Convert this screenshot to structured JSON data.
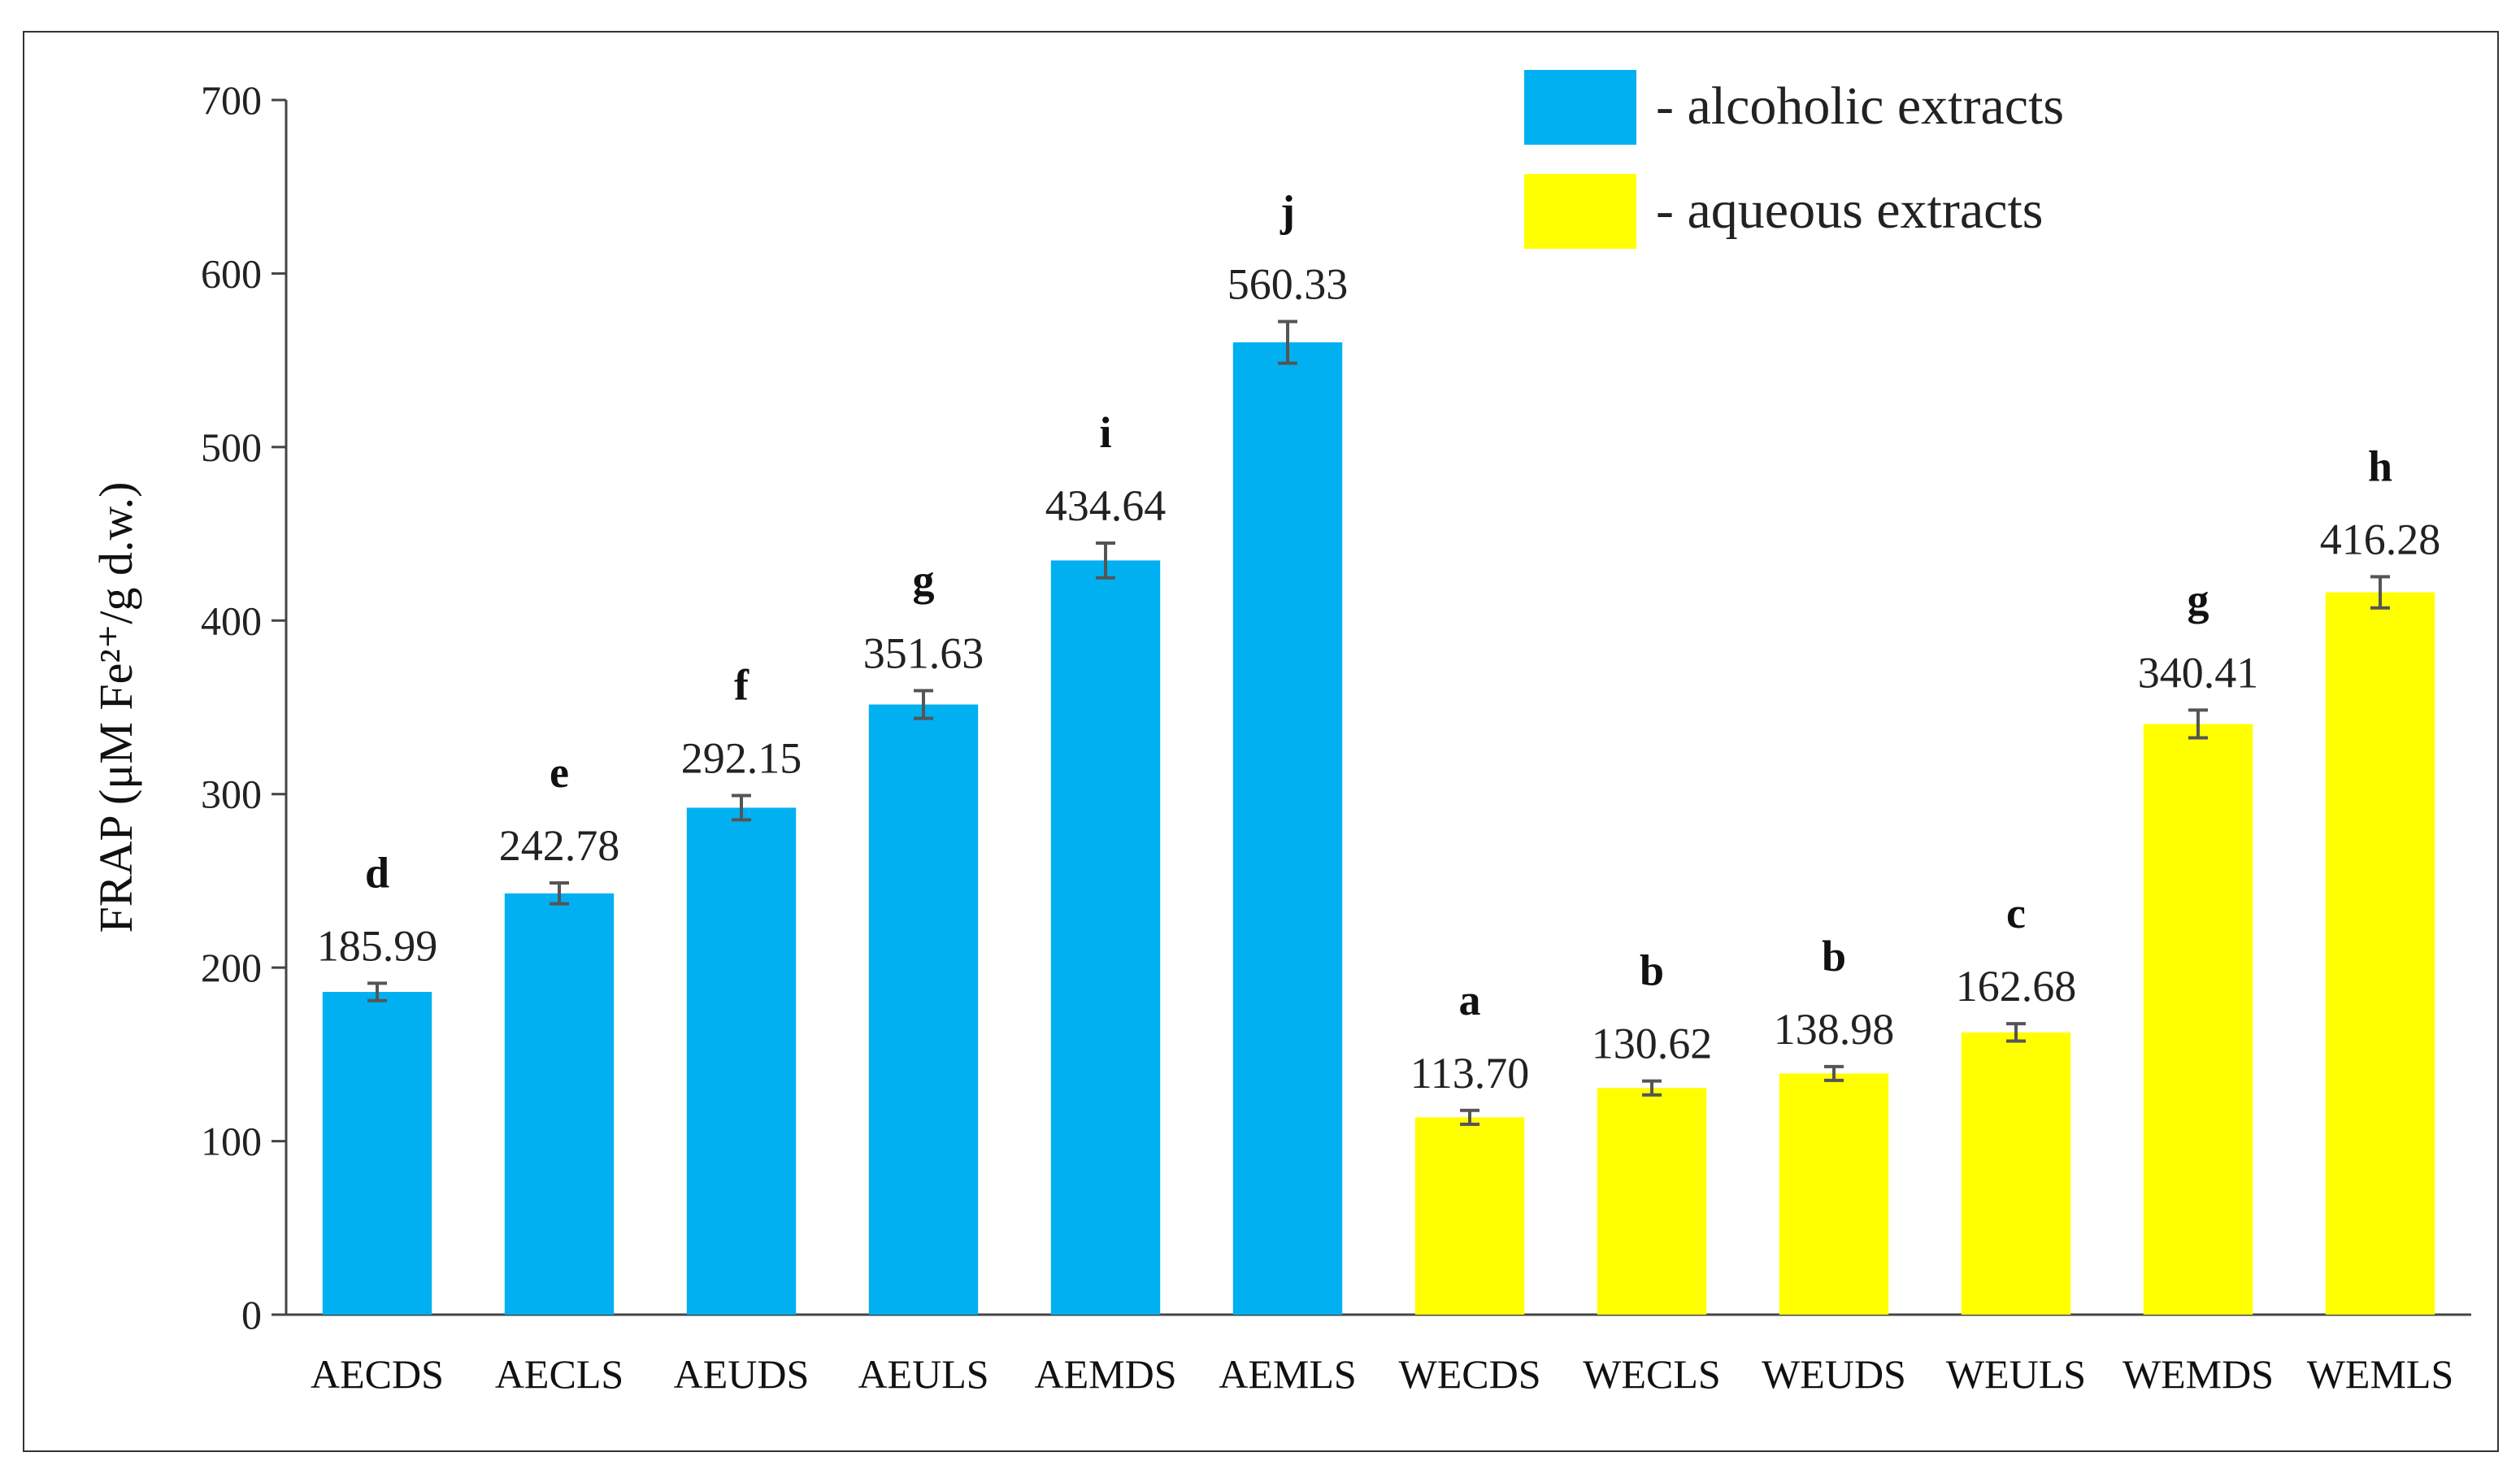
{
  "chart_data": {
    "type": "bar",
    "title": "",
    "xlabel": "",
    "ylabel": "FRAP  (μM Fe²⁺/g d.w.)",
    "ylim": [
      0,
      700
    ],
    "yticks": [
      0,
      100,
      200,
      300,
      400,
      500,
      600,
      700
    ],
    "grid": false,
    "legend_position": "top-right",
    "categories": [
      "AECDS",
      "AECLS",
      "AEUDS",
      "AEULS",
      "AEMDS",
      "AEMLS",
      "WECDS",
      "WECLS",
      "WEUDS",
      "WEULS",
      "WEMDS",
      "WEMLS"
    ],
    "values": [
      185.99,
      242.78,
      292.15,
      351.63,
      434.64,
      560.33,
      113.7,
      130.62,
      138.98,
      162.68,
      340.41,
      416.28
    ],
    "value_labels": [
      "185.99",
      "242.78",
      "292.15",
      "351.63",
      "434.64",
      "560.33",
      "113.70",
      "130.62",
      "138.98",
      "162.68",
      "340.41",
      "416.28"
    ],
    "errors": [
      5,
      6,
      7,
      8,
      10,
      12,
      4,
      4,
      4,
      5,
      8,
      9
    ],
    "significance_letters": [
      "d",
      "e",
      "f",
      "g",
      "i",
      "j",
      "a",
      "b",
      "b",
      "c",
      "g",
      "h"
    ],
    "groups": [
      "alcoholic",
      "alcoholic",
      "alcoholic",
      "alcoholic",
      "alcoholic",
      "alcoholic",
      "aqueous",
      "aqueous",
      "aqueous",
      "aqueous",
      "aqueous",
      "aqueous"
    ],
    "series": [
      {
        "name": "- alcoholic extracts",
        "key": "alcoholic",
        "color": "#00b0f0"
      },
      {
        "name": "- aqueous extracts",
        "key": "aqueous",
        "color": "#ffff00"
      }
    ]
  }
}
